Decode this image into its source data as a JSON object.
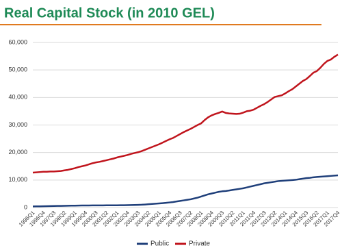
{
  "chart_data": {
    "type": "line",
    "title": "Real Capital Stock (in 2010 GEL)",
    "categories": [
      "1996Q1",
      null,
      null,
      "1996Q4",
      null,
      null,
      "1997Q3",
      null,
      null,
      "1998Q2",
      null,
      null,
      "1999Q1",
      null,
      null,
      "1999Q4",
      null,
      null,
      "2000Q3",
      null,
      null,
      "2001Q2",
      null,
      null,
      "2002Q1",
      null,
      null,
      "2002Q4",
      null,
      null,
      "2003Q3",
      null,
      null,
      "2004Q2",
      null,
      null,
      "2005Q1",
      null,
      null,
      "2005Q4",
      null,
      null,
      "2006Q3",
      null,
      null,
      "2007Q2",
      null,
      null,
      "2008Q1",
      null,
      null,
      "2008Q4",
      null,
      null,
      "2009Q3",
      null,
      null,
      "2010Q2",
      null,
      null,
      "2011Q1",
      null,
      null,
      "2011Q4",
      null,
      null,
      "2012Q3",
      null,
      null,
      "2013Q2",
      null,
      null,
      "2014Q1",
      null,
      null,
      "2014Q4",
      null,
      null,
      "2015Q3",
      null,
      null,
      "2016Q2",
      null,
      null,
      "2017Q1",
      null,
      null,
      "2017Q4"
    ],
    "series": [
      {
        "name": "Public",
        "color": "#1f3f7a",
        "values": [
          400,
          420,
          450,
          480,
          500,
          520,
          550,
          580,
          600,
          620,
          650,
          680,
          700,
          720,
          740,
          750,
          760,
          770,
          780,
          790,
          790,
          800,
          800,
          810,
          820,
          830,
          850,
          870,
          900,
          930,
          970,
          1020,
          1100,
          1200,
          1300,
          1400,
          1500,
          1600,
          1700,
          1850,
          2000,
          2200,
          2400,
          2600,
          2800,
          3000,
          3300,
          3600,
          4000,
          4400,
          4800,
          5100,
          5400,
          5700,
          5900,
          6000,
          6200,
          6400,
          6600,
          6800,
          7000,
          7300,
          7600,
          7900,
          8200,
          8500,
          8800,
          9000,
          9200,
          9400,
          9600,
          9700,
          9800,
          9900,
          10000,
          10100,
          10300,
          10500,
          10700,
          10800,
          11000,
          11100,
          11200,
          11300,
          11400,
          11500,
          11600,
          11700
        ]
      },
      {
        "name": "Private",
        "color": "#c0141c",
        "values": [
          12700,
          12800,
          12900,
          13000,
          13000,
          13100,
          13100,
          13200,
          13300,
          13500,
          13700,
          14000,
          14300,
          14700,
          15000,
          15300,
          15700,
          16100,
          16400,
          16600,
          16900,
          17200,
          17500,
          17800,
          18200,
          18500,
          18800,
          19100,
          19500,
          19800,
          20100,
          20500,
          21000,
          21500,
          22000,
          22500,
          23000,
          23600,
          24200,
          24800,
          25300,
          26000,
          26700,
          27400,
          28000,
          28600,
          29300,
          30000,
          30600,
          31800,
          32800,
          33500,
          34000,
          34400,
          34900,
          34400,
          34200,
          34100,
          34000,
          34100,
          34500,
          35000,
          35200,
          35600,
          36300,
          37000,
          37600,
          38400,
          39300,
          40200,
          40500,
          40800,
          41500,
          42300,
          43000,
          44000,
          45000,
          46000,
          46700,
          47800,
          49000,
          49600,
          50800,
          52200,
          53300,
          53800,
          54800,
          55600
        ]
      }
    ],
    "ylim": [
      0,
      60000
    ],
    "yticks": [
      0,
      {
        "value": 10000,
        "label": "10,000"
      },
      {
        "value": 20000,
        "label": "20,000"
      },
      {
        "value": 30000,
        "label": "30,000"
      },
      {
        "value": 40000,
        "label": "40,000"
      },
      {
        "value": 50000,
        "label": "50,000"
      },
      {
        "value": 60000,
        "label": "60,000"
      }
    ],
    "grid": true
  }
}
